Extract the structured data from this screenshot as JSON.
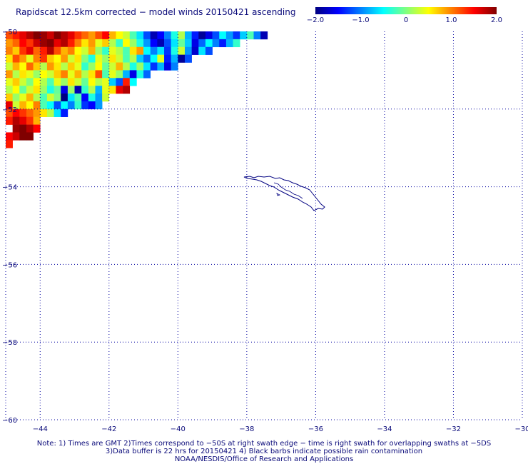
{
  "title": "Rapidscat 12.5km corrected − model winds 20150421 ascending",
  "colorbar": {
    "ticks": [
      "−2.0",
      "−1.0",
      "0",
      "1.0",
      "2.0"
    ],
    "values": [
      -2.0,
      -1.0,
      0,
      1.0,
      2.0
    ],
    "range": [
      -2.0,
      2.0
    ],
    "colors": [
      "#000080",
      "#0000ff",
      "#0080ff",
      "#00ffff",
      "#80ff80",
      "#ffff00",
      "#ff8000",
      "#ff0000",
      "#800000"
    ]
  },
  "map": {
    "lon_range": [
      -45,
      -30
    ],
    "lat_range": [
      -60,
      -50
    ],
    "x_ticks": [
      "−44",
      "−42",
      "−40",
      "−38",
      "−36",
      "−34",
      "−32",
      "−30"
    ],
    "y_ticks": [
      "−50",
      "−52",
      "−54",
      "−56",
      "−58",
      "−60"
    ],
    "gridlines": "dotted",
    "coastline_color": "#000080"
  },
  "swath_data": {
    "cell_size_deg": 0.2,
    "description_rows": "rows from -50 southward, each row lists start longitude and values (wind speed difference m/s)",
    "rows": [
      {
        "lat": -50.1,
        "lon_start": -44.9,
        "values": [
          1.2,
          1.4,
          1.6,
          1.8,
          2.0,
          1.9,
          1.7,
          2.0,
          1.8,
          1.6,
          1.3,
          1.1,
          0.9,
          1.2,
          1.5,
          0.8,
          0.5,
          0.3,
          -0.2,
          -0.6,
          -1.2,
          -1.8,
          -1.5,
          -1.0,
          -0.4,
          0.2,
          -0.8,
          -1.4,
          -1.9,
          -1.6,
          -1.2,
          -0.5,
          -0.9,
          -1.3,
          -0.7,
          -0.2,
          -1.0,
          -1.8
        ]
      },
      {
        "lat": -50.3,
        "lon_start": -44.9,
        "values": [
          0.9,
          1.1,
          1.5,
          1.3,
          1.7,
          1.9,
          2.0,
          1.6,
          1.8,
          1.4,
          1.0,
          0.6,
          0.9,
          0.4,
          0.7,
          0.2,
          -0.3,
          0.5,
          0.1,
          -0.4,
          -0.9,
          -1.5,
          -1.8,
          -1.2,
          -0.6,
          -0.1,
          -0.7,
          -1.6,
          -1.1,
          -0.5,
          -1.0,
          -1.4,
          -0.8,
          -0.3
        ]
      },
      {
        "lat": -50.5,
        "lon_start": -44.9,
        "values": [
          1.0,
          0.7,
          1.3,
          1.6,
          1.1,
          1.4,
          1.8,
          1.2,
          0.8,
          1.0,
          0.5,
          0.3,
          0.8,
          0.1,
          -0.3,
          0.4,
          0.2,
          -0.2,
          0.6,
          0.9,
          -0.5,
          -1.0,
          -0.6,
          -1.3,
          -0.4,
          0.3,
          -0.9,
          -1.7,
          -0.6,
          -1.2
        ]
      },
      {
        "lat": -50.7,
        "lon_start": -44.9,
        "values": [
          0.6,
          1.2,
          0.9,
          0.4,
          1.0,
          1.3,
          0.7,
          0.5,
          0.9,
          0.3,
          0.6,
          0.0,
          -0.4,
          0.4,
          0.1,
          0.6,
          0.3,
          -0.2,
          0.2,
          -0.7,
          -1.1,
          -0.5,
          0.4,
          -1.4,
          -0.8,
          -1.9,
          -1.2
        ]
      },
      {
        "lat": -50.9,
        "lon_start": -44.9,
        "values": [
          0.3,
          0.8,
          0.5,
          1.1,
          0.7,
          0.2,
          0.9,
          0.6,
          0.2,
          0.7,
          0.4,
          -0.3,
          0.1,
          0.5,
          -0.1,
          0.3,
          0.8,
          0.2,
          -0.4,
          0.1,
          -0.6,
          -1.3,
          -0.8,
          -1.6,
          -1.0
        ]
      },
      {
        "lat": -51.1,
        "lon_start": -44.9,
        "values": [
          0.9,
          0.2,
          0.6,
          0.4,
          0.1,
          0.5,
          0.3,
          0.7,
          1.0,
          0.4,
          0.8,
          0.2,
          0.6,
          1.2,
          -0.2,
          0.4,
          0.1,
          -0.8,
          -1.6,
          -0.4,
          -1.1
        ]
      },
      {
        "lat": -51.3,
        "lon_start": -44.9,
        "values": [
          0.4,
          0.7,
          0.3,
          0.0,
          0.5,
          0.2,
          -0.2,
          0.4,
          0.1,
          0.6,
          0.3,
          -0.1,
          0.5,
          0.2,
          0.4,
          -0.7,
          -1.2,
          1.4,
          -0.5
        ]
      },
      {
        "lat": -51.5,
        "lon_start": -44.9,
        "values": [
          0.2,
          0.5,
          -0.1,
          0.3,
          0.6,
          0.1,
          -0.4,
          -0.1,
          -1.6,
          0.1,
          -1.8,
          -0.3,
          0.2,
          -0.8,
          0.4,
          0.6,
          1.6,
          1.8
        ]
      },
      {
        "lat": -51.7,
        "lon_start": -44.9,
        "values": [
          0.7,
          0.1,
          0.4,
          0.8,
          0.2,
          -0.2,
          0.3,
          0.0,
          -2.0,
          -0.6,
          -0.2,
          -1.5,
          -0.4,
          -0.9,
          0.3
        ]
      },
      {
        "lat": -51.9,
        "lon_start": -44.9,
        "values": [
          1.6,
          0.3,
          0.8,
          0.5,
          1.0,
          -0.2,
          -0.5,
          -1.2,
          -0.5,
          -1.0,
          -0.3,
          -1.3,
          -1.5,
          -0.9
        ]
      },
      {
        "lat": -52.1,
        "lon_start": -44.9,
        "values": [
          1.2,
          1.5,
          1.3,
          1.1,
          0.9,
          0.6,
          0.2,
          -0.6,
          -1.4
        ]
      },
      {
        "lat": -52.3,
        "lon_start": -44.9,
        "values": [
          1.4,
          1.8,
          1.6,
          1.3,
          0.8
        ]
      },
      {
        "lat": -52.5,
        "lon_start": -44.7,
        "values": [
          1.9,
          2.0,
          1.8,
          1.5
        ]
      },
      {
        "lat": -52.7,
        "lon_start": -44.9,
        "values": [
          1.5,
          1.7,
          2.0,
          2.0
        ]
      },
      {
        "lat": -52.9,
        "lon_start": -44.9,
        "values": [
          1.4
        ]
      }
    ]
  },
  "notes": {
    "line1": "Note: 1) Times are GMT 2)Times correspond to −50S at right swath edge − time is right swath for overlapping swaths at −5DS",
    "line2": "3)Data buffer is 22 hrs for 20150421 4) Black barbs indicate possible rain contamination",
    "line3": "NOAA/NESDIS/Office of Research and Applications"
  }
}
